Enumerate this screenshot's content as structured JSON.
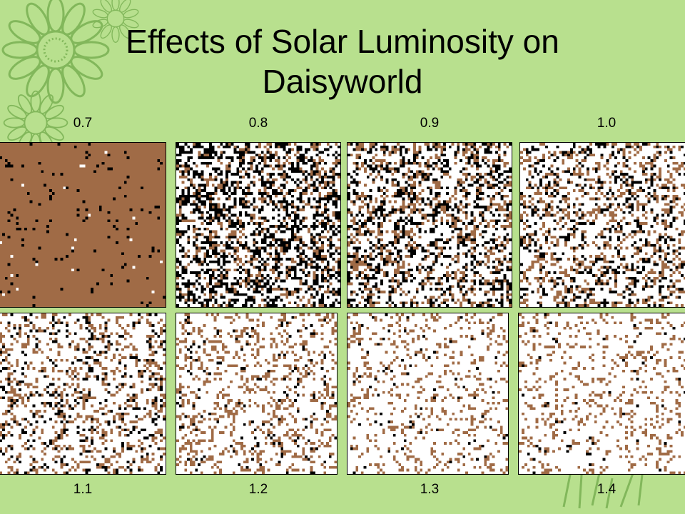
{
  "slide": {
    "title": "Effects of Solar Luminosity on Daisyworld"
  },
  "colors": {
    "background": "#b8e08e",
    "bare_ground": "#a06b46",
    "black_daisy": "#000000",
    "white_daisy": "#ffffff",
    "decoration": "#7cb356"
  },
  "panels": [
    {
      "luminosity": "0.7",
      "mix": {
        "bare": 0.96,
        "black": 0.035,
        "white": 0.005
      }
    },
    {
      "luminosity": "0.8",
      "mix": {
        "bare": 0.22,
        "black": 0.45,
        "white": 0.33
      }
    },
    {
      "luminosity": "0.9",
      "mix": {
        "bare": 0.28,
        "black": 0.32,
        "white": 0.4
      }
    },
    {
      "luminosity": "1.0",
      "mix": {
        "bare": 0.3,
        "black": 0.22,
        "white": 0.48
      }
    },
    {
      "luminosity": "1.1",
      "mix": {
        "bare": 0.28,
        "black": 0.14,
        "white": 0.58
      }
    },
    {
      "luminosity": "1.2",
      "mix": {
        "bare": 0.3,
        "black": 0.06,
        "white": 0.64
      }
    },
    {
      "luminosity": "1.3",
      "mix": {
        "bare": 0.22,
        "black": 0.03,
        "white": 0.75
      }
    },
    {
      "luminosity": "1.4",
      "mix": {
        "bare": 0.22,
        "black": 0.02,
        "white": 0.76
      }
    }
  ]
}
